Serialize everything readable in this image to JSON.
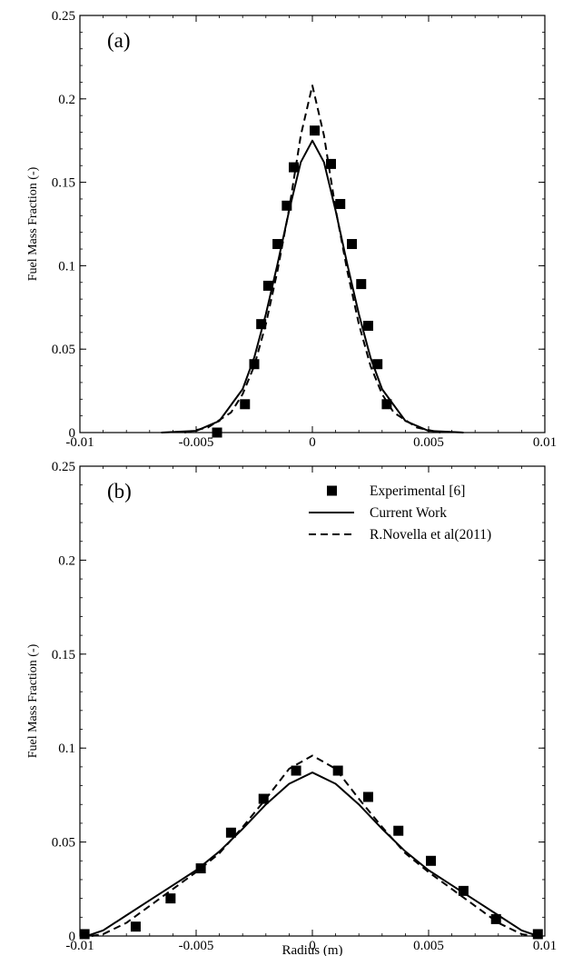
{
  "chart_data": [
    {
      "type": "line",
      "panel_label": "(a)",
      "xlabel": "",
      "ylabel": "Fuel Mass Fraction (-)",
      "xlim": [
        -0.01,
        0.01
      ],
      "ylim": [
        0,
        0.25
      ],
      "xticks": [
        -0.01,
        -0.005,
        0,
        0.005,
        0.01
      ],
      "yticks": [
        0,
        0.05,
        0.1,
        0.15,
        0.2,
        0.25
      ],
      "xtick_labels": [
        "-0.01",
        "-0.005",
        "0",
        "0.005",
        "0.01"
      ],
      "ytick_labels": [
        "0",
        "0.05",
        "0.1",
        "0.15",
        "0.2",
        "0.25"
      ],
      "grid": false,
      "series": [
        {
          "style": "markers-square",
          "x": [
            -0.0041,
            -0.0029,
            -0.0025,
            -0.0022,
            -0.0019,
            -0.0015,
            -0.0011,
            -0.0008,
            0.0001,
            0.0008,
            0.0012,
            0.0017,
            0.0021,
            0.0024,
            0.0028,
            0.0032
          ],
          "y": [
            0.0,
            0.017,
            0.041,
            0.065,
            0.088,
            0.113,
            0.136,
            0.159,
            0.181,
            0.161,
            0.137,
            0.113,
            0.089,
            0.064,
            0.041,
            0.017
          ]
        },
        {
          "style": "solid",
          "x": [
            -0.0065,
            -0.005,
            -0.004,
            -0.003,
            -0.0025,
            -0.002,
            -0.0015,
            -0.001,
            -0.0005,
            0.0,
            0.0005,
            0.001,
            0.0015,
            0.002,
            0.0025,
            0.003,
            0.004,
            0.005,
            0.0065
          ],
          "y": [
            0.0,
            0.001,
            0.007,
            0.026,
            0.045,
            0.071,
            0.101,
            0.133,
            0.162,
            0.175,
            0.162,
            0.133,
            0.101,
            0.071,
            0.045,
            0.026,
            0.007,
            0.001,
            0.0
          ]
        },
        {
          "style": "dashed",
          "x": [
            -0.0055,
            -0.0045,
            -0.0035,
            -0.003,
            -0.0025,
            -0.002,
            -0.0015,
            -0.001,
            -0.0005,
            0.0,
            0.0005,
            0.001,
            0.0015,
            0.002,
            0.0025,
            0.003,
            0.0035,
            0.0045,
            0.0055
          ],
          "y": [
            0.0,
            0.003,
            0.012,
            0.023,
            0.04,
            0.065,
            0.097,
            0.134,
            0.178,
            0.208,
            0.178,
            0.134,
            0.097,
            0.065,
            0.04,
            0.023,
            0.012,
            0.003,
            0.0
          ]
        }
      ]
    },
    {
      "type": "line",
      "panel_label": "(b)",
      "xlabel": "Radius (m)",
      "ylabel": "Fuel Mass Fraction (-)",
      "xlim": [
        -0.01,
        0.01
      ],
      "ylim": [
        0,
        0.25
      ],
      "xticks": [
        -0.01,
        -0.005,
        0,
        0.005,
        0.01
      ],
      "yticks": [
        0,
        0.05,
        0.1,
        0.15,
        0.2,
        0.25
      ],
      "xtick_labels": [
        "-0.01",
        "-0.005",
        "0",
        "0.005",
        "0.01"
      ],
      "ytick_labels": [
        "0",
        "0.05",
        "0.1",
        "0.15",
        "0.2",
        "0.25"
      ],
      "grid": false,
      "legend_position": "top-right",
      "series": [
        {
          "name": "Experimental [6]",
          "style": "markers-square",
          "x": [
            -0.0098,
            -0.0076,
            -0.0061,
            -0.0048,
            -0.0035,
            -0.0021,
            -0.0007,
            0.0011,
            0.0024,
            0.0037,
            0.0051,
            0.0065,
            0.0079,
            0.0097
          ],
          "y": [
            0.001,
            0.005,
            0.02,
            0.036,
            0.055,
            0.073,
            0.088,
            0.088,
            0.074,
            0.056,
            0.04,
            0.024,
            0.009,
            0.001
          ]
        },
        {
          "name": "Current Work",
          "style": "solid",
          "x": [
            -0.0097,
            -0.009,
            -0.008,
            -0.007,
            -0.006,
            -0.005,
            -0.004,
            -0.003,
            -0.002,
            -0.001,
            0.0,
            0.001,
            0.002,
            0.003,
            0.004,
            0.005,
            0.006,
            0.007,
            0.008,
            0.009,
            0.0097
          ],
          "y": [
            0.0,
            0.003,
            0.011,
            0.019,
            0.027,
            0.035,
            0.045,
            0.057,
            0.07,
            0.081,
            0.087,
            0.081,
            0.07,
            0.057,
            0.045,
            0.035,
            0.027,
            0.019,
            0.011,
            0.003,
            0.0
          ]
        },
        {
          "name": "R.Novella et al(2011)",
          "style": "dashed",
          "x": [
            -0.0095,
            -0.009,
            -0.008,
            -0.007,
            -0.006,
            -0.005,
            -0.004,
            -0.003,
            -0.002,
            -0.001,
            0.0,
            0.001,
            0.002,
            0.003,
            0.004,
            0.005,
            0.006,
            0.007,
            0.008,
            0.009,
            0.0095
          ],
          "y": [
            0.0,
            0.001,
            0.007,
            0.016,
            0.025,
            0.034,
            0.044,
            0.058,
            0.073,
            0.089,
            0.096,
            0.089,
            0.073,
            0.058,
            0.044,
            0.034,
            0.025,
            0.016,
            0.007,
            0.001,
            0.0
          ]
        }
      ]
    }
  ]
}
